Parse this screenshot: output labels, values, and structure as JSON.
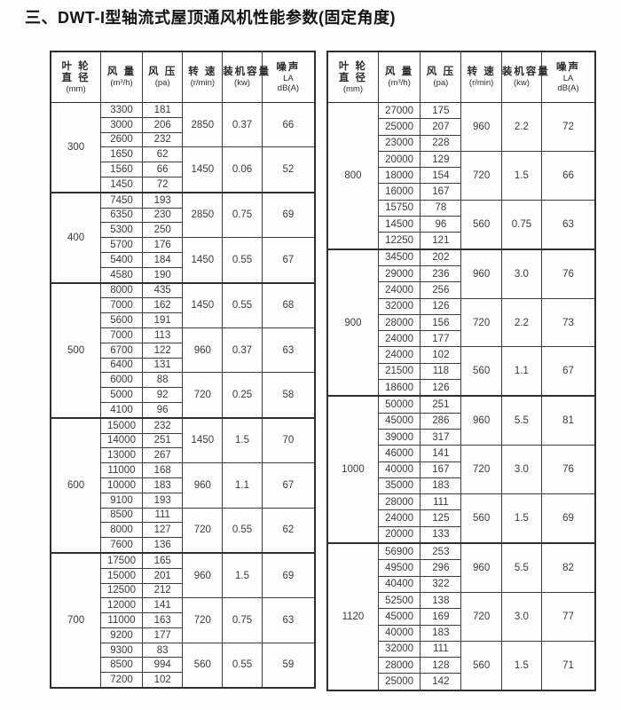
{
  "title": "三、DWT-I型轴流式屋顶通风机性能参数(固定角度)",
  "header": {
    "columns": [
      {
        "name": "diameter",
        "lines": [
          "叶 轮",
          "直 径",
          "(mm)"
        ]
      },
      {
        "name": "airflow",
        "lines": [
          "风 量",
          "(m³/h)"
        ]
      },
      {
        "name": "pressure",
        "lines": [
          "风 压",
          "(pa)"
        ]
      },
      {
        "name": "speed",
        "lines": [
          "转 速",
          "(r/min)"
        ]
      },
      {
        "name": "capacity",
        "lines": [
          "装机容量",
          "(kw)"
        ]
      },
      {
        "name": "noise",
        "lines": [
          "噪声",
          "LA",
          "dB(A)"
        ]
      }
    ]
  },
  "tables": [
    {
      "sections": [
        {
          "diameter": "300",
          "groups": [
            {
              "rows": [
                [
                  "3300",
                  "181"
                ],
                [
                  "3000",
                  "206"
                ],
                [
                  "2600",
                  "232"
                ]
              ],
              "speed": "2850",
              "capacity": "0.37",
              "noise": "66"
            },
            {
              "rows": [
                [
                  "1650",
                  "62"
                ],
                [
                  "1560",
                  "66"
                ],
                [
                  "1450",
                  "72"
                ]
              ],
              "speed": "1450",
              "capacity": "0.06",
              "noise": "52"
            }
          ]
        },
        {
          "diameter": "400",
          "groups": [
            {
              "rows": [
                [
                  "7450",
                  "193"
                ],
                [
                  "6350",
                  "230"
                ],
                [
                  "5300",
                  "250"
                ]
              ],
              "speed": "2850",
              "capacity": "0.75",
              "noise": "69"
            },
            {
              "rows": [
                [
                  "5700",
                  "176"
                ],
                [
                  "5400",
                  "184"
                ],
                [
                  "4580",
                  "190"
                ]
              ],
              "speed": "1450",
              "capacity": "0.55",
              "noise": "67"
            }
          ]
        },
        {
          "diameter": "500",
          "groups": [
            {
              "rows": [
                [
                  "8000",
                  "435"
                ],
                [
                  "7000",
                  "162"
                ],
                [
                  "5600",
                  "191"
                ]
              ],
              "speed": "1450",
              "capacity": "0.55",
              "noise": "68"
            },
            {
              "rows": [
                [
                  "7000",
                  "113"
                ],
                [
                  "6700",
                  "122"
                ],
                [
                  "6400",
                  "131"
                ]
              ],
              "speed": "960",
              "capacity": "0.37",
              "noise": "63"
            },
            {
              "rows": [
                [
                  "6000",
                  "88"
                ],
                [
                  "5000",
                  "92"
                ],
                [
                  "4100",
                  "96"
                ]
              ],
              "speed": "720",
              "capacity": "0.25",
              "noise": "58"
            }
          ]
        },
        {
          "diameter": "600",
          "groups": [
            {
              "rows": [
                [
                  "15000",
                  "232"
                ],
                [
                  "14000",
                  "251"
                ],
                [
                  "13000",
                  "267"
                ]
              ],
              "speed": "1450",
              "capacity": "1.5",
              "noise": "70"
            },
            {
              "rows": [
                [
                  "11000",
                  "168"
                ],
                [
                  "10000",
                  "183"
                ],
                [
                  "9100",
                  "193"
                ]
              ],
              "speed": "960",
              "capacity": "1.1",
              "noise": "67"
            },
            {
              "rows": [
                [
                  "8500",
                  "111"
                ],
                [
                  "8000",
                  "127"
                ],
                [
                  "7600",
                  "136"
                ]
              ],
              "speed": "720",
              "capacity": "0.55",
              "noise": "62"
            }
          ]
        },
        {
          "diameter": "700",
          "groups": [
            {
              "rows": [
                [
                  "17500",
                  "165"
                ],
                [
                  "15000",
                  "201"
                ],
                [
                  "12500",
                  "212"
                ]
              ],
              "speed": "960",
              "capacity": "1.5",
              "noise": "69"
            },
            {
              "rows": [
                [
                  "12000",
                  "141"
                ],
                [
                  "11000",
                  "163"
                ],
                [
                  "9200",
                  "177"
                ]
              ],
              "speed": "720",
              "capacity": "0.75",
              "noise": "63"
            },
            {
              "rows": [
                [
                  "9300",
                  "83"
                ],
                [
                  "8500",
                  "994"
                ],
                [
                  "7200",
                  "102"
                ]
              ],
              "speed": "560",
              "capacity": "0.55",
              "noise": "59"
            }
          ]
        }
      ]
    },
    {
      "sections": [
        {
          "diameter": "800",
          "groups": [
            {
              "rows": [
                [
                  "27000",
                  "175"
                ],
                [
                  "25000",
                  "207"
                ],
                [
                  "23000",
                  "228"
                ]
              ],
              "speed": "960",
              "capacity": "2.2",
              "noise": "72"
            },
            {
              "rows": [
                [
                  "20000",
                  "129"
                ],
                [
                  "18000",
                  "154"
                ],
                [
                  "16000",
                  "167"
                ]
              ],
              "speed": "720",
              "capacity": "1.5",
              "noise": "66"
            },
            {
              "rows": [
                [
                  "15750",
                  "78"
                ],
                [
                  "14500",
                  "96"
                ],
                [
                  "12250",
                  "121"
                ]
              ],
              "speed": "560",
              "capacity": "0.75",
              "noise": "63"
            }
          ]
        },
        {
          "diameter": "900",
          "groups": [
            {
              "rows": [
                [
                  "34500",
                  "202"
                ],
                [
                  "29000",
                  "236"
                ],
                [
                  "24000",
                  "256"
                ]
              ],
              "speed": "960",
              "capacity": "3.0",
              "noise": "76"
            },
            {
              "rows": [
                [
                  "32000",
                  "126"
                ],
                [
                  "28000",
                  "156"
                ],
                [
                  "24000",
                  "177"
                ]
              ],
              "speed": "720",
              "capacity": "2.2",
              "noise": "73"
            },
            {
              "rows": [
                [
                  "24000",
                  "102"
                ],
                [
                  "21500",
                  "118"
                ],
                [
                  "18600",
                  "126"
                ]
              ],
              "speed": "560",
              "capacity": "1.1",
              "noise": "67"
            }
          ]
        },
        {
          "diameter": "1000",
          "groups": [
            {
              "rows": [
                [
                  "50000",
                  "251"
                ],
                [
                  "45000",
                  "286"
                ],
                [
                  "39000",
                  "317"
                ]
              ],
              "speed": "960",
              "capacity": "5.5",
              "noise": "81"
            },
            {
              "rows": [
                [
                  "46000",
                  "141"
                ],
                [
                  "40000",
                  "167"
                ],
                [
                  "35000",
                  "183"
                ]
              ],
              "speed": "720",
              "capacity": "3.0",
              "noise": "76"
            },
            {
              "rows": [
                [
                  "28000",
                  "111"
                ],
                [
                  "24000",
                  "125"
                ],
                [
                  "20000",
                  "133"
                ]
              ],
              "speed": "560",
              "capacity": "1.5",
              "noise": "69"
            }
          ]
        },
        {
          "diameter": "1120",
          "groups": [
            {
              "rows": [
                [
                  "56900",
                  "253"
                ],
                [
                  "49500",
                  "296"
                ],
                [
                  "40400",
                  "322"
                ]
              ],
              "speed": "960",
              "capacity": "5.5",
              "noise": "82"
            },
            {
              "rows": [
                [
                  "52500",
                  "138"
                ],
                [
                  "45000",
                  "169"
                ],
                [
                  "40000",
                  "183"
                ]
              ],
              "speed": "720",
              "capacity": "3.0",
              "noise": "77"
            },
            {
              "rows": [
                [
                  "32000",
                  "111"
                ],
                [
                  "28000",
                  "128"
                ],
                [
                  "25000",
                  "142"
                ]
              ],
              "speed": "560",
              "capacity": "1.5",
              "noise": "71"
            }
          ]
        }
      ]
    }
  ]
}
